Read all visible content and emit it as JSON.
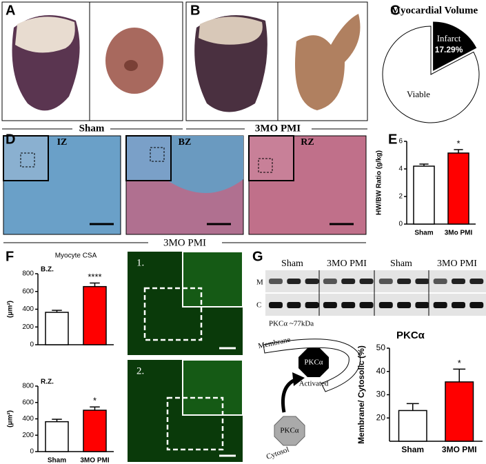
{
  "panel_labels": [
    "A",
    "B",
    "C",
    "D",
    "E",
    "F",
    "G"
  ],
  "panel_a": {
    "caption": "Sham"
  },
  "panel_b": {
    "caption": "3MO PMI"
  },
  "panel_d": {
    "regions": [
      "IZ",
      "BZ",
      "RZ"
    ],
    "caption": "3MO PMI"
  },
  "panel_f": {
    "image_labels": [
      "1.",
      "2."
    ]
  },
  "panel_g": {
    "blot_groups": [
      "Sham",
      "3MO PMI",
      "Sham",
      "3MO PMI"
    ],
    "rows": [
      "M",
      "C"
    ],
    "blot_note": "PKCα ~77kDa",
    "diagram": {
      "membrane": "Membrane",
      "active": "PKCα",
      "activated": "Activated",
      "inactive": "PKCα",
      "cytosol": "Cytosol"
    }
  },
  "chart_data": [
    {
      "type": "pie",
      "title": "Myocardial Volume",
      "categories": [
        "Infarct",
        "Viable"
      ],
      "values": [
        17.29,
        82.71
      ],
      "value_labels": [
        "17.29%",
        null
      ],
      "colors": [
        "#000000",
        "#ffffff"
      ]
    },
    {
      "type": "bar",
      "y_label": "HW/BW Ratio (g/kg)",
      "categories": [
        "Sham",
        "3Mo PMI"
      ],
      "values": [
        4.2,
        5.15
      ],
      "errors": [
        0.15,
        0.25
      ],
      "annotations": [
        null,
        "*"
      ],
      "colors": [
        "#ffffff",
        "#ff0000"
      ],
      "ylim": [
        0,
        6
      ],
      "yticks": [
        0,
        2,
        4,
        6
      ]
    },
    {
      "type": "bar",
      "title": "Myocyte CSA",
      "subtitle": "B.Z.",
      "y_label": "(μm²)",
      "categories": [
        null,
        null
      ],
      "values": [
        365,
        655
      ],
      "errors": [
        22,
        40
      ],
      "annotations": [
        null,
        "****"
      ],
      "colors": [
        "#ffffff",
        "#ff0000"
      ],
      "ylim": [
        0,
        800
      ],
      "yticks": [
        0,
        200,
        400,
        600,
        800
      ]
    },
    {
      "type": "bar",
      "subtitle": "R.Z.",
      "y_label": "(μm²)",
      "categories": [
        "Sham",
        "3MO PMI"
      ],
      "values": [
        365,
        505
      ],
      "errors": [
        30,
        40
      ],
      "annotations": [
        null,
        "*"
      ],
      "colors": [
        "#ffffff",
        "#ff0000"
      ],
      "ylim": [
        0,
        800
      ],
      "yticks": [
        0,
        200,
        400,
        600,
        800
      ]
    },
    {
      "type": "bar",
      "title": "PKCα",
      "y_label": "Membrane/ Cytosolic (%)",
      "categories": [
        "Sham",
        "3MO PMI"
      ],
      "values": [
        23.2,
        35.5
      ],
      "errors": [
        3,
        5.5
      ],
      "annotations": [
        null,
        "*"
      ],
      "colors": [
        "#ffffff",
        "#ff0000"
      ],
      "ylim": [
        10,
        50
      ],
      "yticks": [
        20,
        30,
        40,
        50
      ]
    }
  ]
}
